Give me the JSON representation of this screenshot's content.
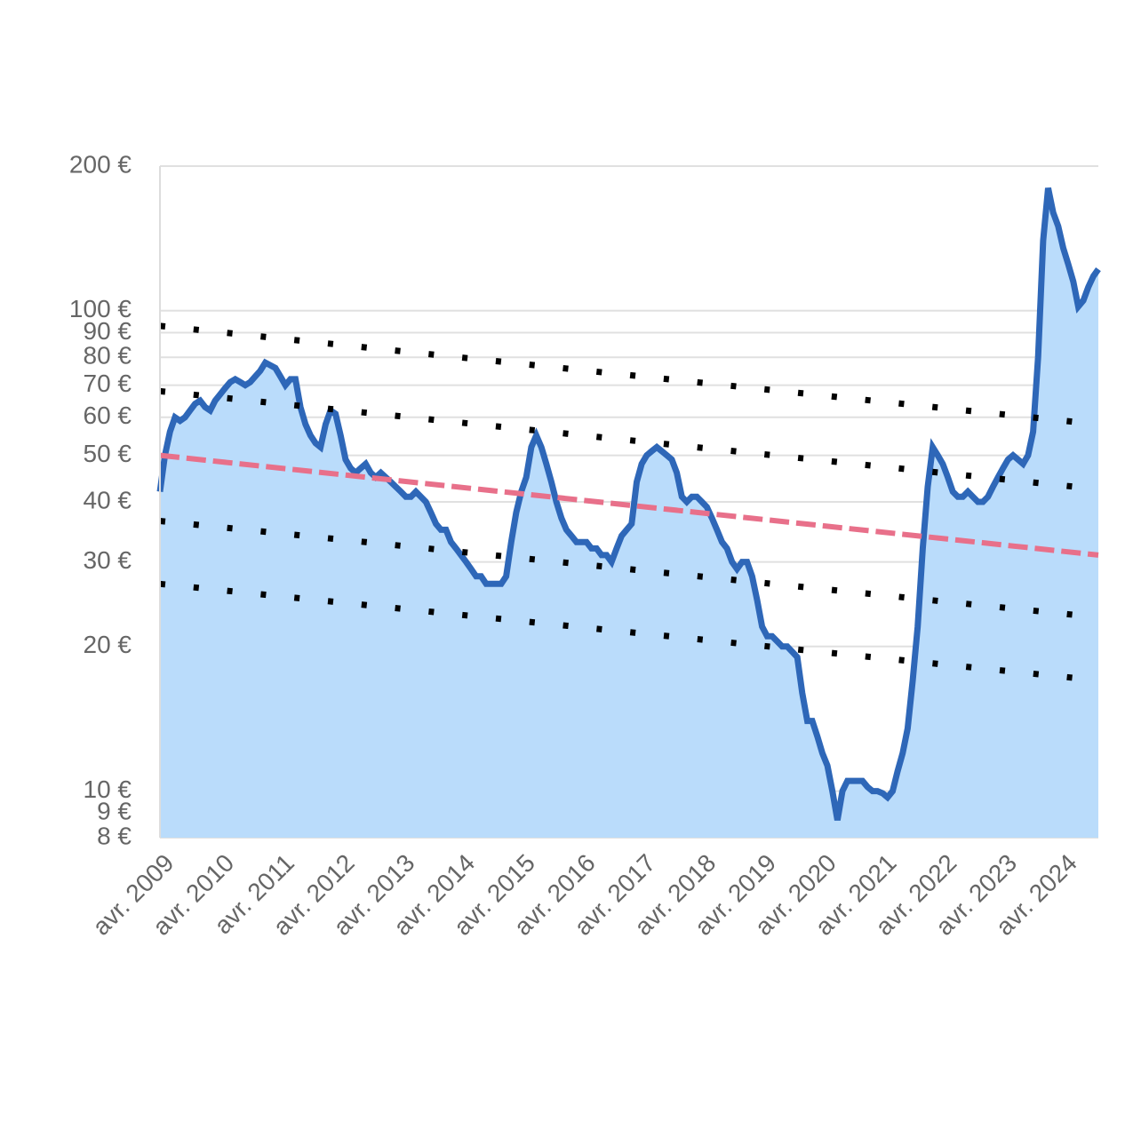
{
  "chart_data": {
    "type": "area-line",
    "log_scale": true,
    "grid": true,
    "ylim": [
      8,
      200
    ],
    "yticks": [
      {
        "value": 8,
        "label": "8 €"
      },
      {
        "value": 9,
        "label": "9 €"
      },
      {
        "value": 10,
        "label": "10 €"
      },
      {
        "value": 20,
        "label": "20 €"
      },
      {
        "value": 30,
        "label": "30 €"
      },
      {
        "value": 40,
        "label": "40 €"
      },
      {
        "value": 50,
        "label": "50 €"
      },
      {
        "value": 60,
        "label": "60 €"
      },
      {
        "value": 70,
        "label": "70 €"
      },
      {
        "value": 80,
        "label": "80 €"
      },
      {
        "value": 90,
        "label": "90 €"
      },
      {
        "value": 100,
        "label": "100 €"
      },
      {
        "value": 200,
        "label": "200 €"
      }
    ],
    "categories": [
      "avr. 2009",
      null,
      null,
      null,
      null,
      null,
      null,
      null,
      null,
      null,
      null,
      null,
      "avr. 2010",
      null,
      null,
      null,
      null,
      null,
      null,
      null,
      null,
      null,
      null,
      null,
      "avr. 2011",
      null,
      null,
      null,
      null,
      null,
      null,
      null,
      null,
      null,
      null,
      null,
      "avr. 2012",
      null,
      null,
      null,
      null,
      null,
      null,
      null,
      null,
      null,
      null,
      null,
      "avr. 2013",
      null,
      null,
      null,
      null,
      null,
      null,
      null,
      null,
      null,
      null,
      null,
      "avr. 2014",
      null,
      null,
      null,
      null,
      null,
      null,
      null,
      null,
      null,
      null,
      null,
      "avr. 2015",
      null,
      null,
      null,
      null,
      null,
      null,
      null,
      null,
      null,
      null,
      null,
      "avr. 2016",
      null,
      null,
      null,
      null,
      null,
      null,
      null,
      null,
      null,
      null,
      null,
      "avr. 2017",
      null,
      null,
      null,
      null,
      null,
      null,
      null,
      null,
      null,
      null,
      null,
      "avr. 2018",
      null,
      null,
      null,
      null,
      null,
      null,
      null,
      null,
      null,
      null,
      null,
      "avr. 2019",
      null,
      null,
      null,
      null,
      null,
      null,
      null,
      null,
      null,
      null,
      null,
      "avr. 2020",
      null,
      null,
      null,
      null,
      null,
      null,
      null,
      null,
      null,
      null,
      null,
      "avr. 2021",
      null,
      null,
      null,
      null,
      null,
      null,
      null,
      null,
      null,
      null,
      null,
      "avr. 2022",
      null,
      null,
      null,
      null,
      null,
      null,
      null,
      null,
      null,
      null,
      null,
      "avr. 2023",
      null,
      null,
      null,
      null,
      null,
      null,
      null,
      null,
      null,
      null,
      null,
      "avr. 2024",
      null,
      null,
      null,
      null,
      null,
      null,
      null
    ],
    "series": [
      {
        "color": "#2e67b8",
        "fill": "#badcfb",
        "values": [
          42,
          50,
          56,
          60,
          59,
          60,
          62,
          64,
          65,
          63,
          62,
          65,
          67,
          69,
          71,
          72,
          71,
          70,
          71,
          73,
          75,
          78,
          77,
          76,
          73,
          70,
          72,
          72,
          63,
          58,
          55,
          53,
          52,
          58,
          62,
          61,
          55,
          49,
          47,
          46,
          47,
          48,
          46,
          45,
          46,
          45,
          44,
          43,
          42,
          41,
          41,
          42,
          41,
          40,
          38,
          36,
          35,
          35,
          33,
          32,
          31,
          30,
          29,
          28,
          28,
          27,
          27,
          27,
          27,
          28,
          33,
          38,
          42,
          45,
          52,
          55,
          52,
          48,
          44,
          40,
          37,
          35,
          34,
          33,
          33,
          33,
          32,
          32,
          31,
          31,
          30,
          32,
          34,
          35,
          36,
          44,
          48,
          50,
          51,
          52,
          51,
          50,
          49,
          46,
          41,
          40,
          41,
          41,
          40,
          39,
          37,
          35,
          33,
          32,
          30,
          29,
          30,
          30,
          28,
          25,
          22,
          21,
          21,
          20.5,
          20,
          20,
          19.5,
          19,
          16,
          14,
          14,
          13,
          12,
          11.3,
          10,
          8.7,
          10,
          10.5,
          10.5,
          10.5,
          10.5,
          10.2,
          10,
          10,
          9.9,
          9.7,
          10,
          11,
          12,
          13.5,
          17,
          22,
          32,
          43,
          52,
          50,
          48,
          45,
          42,
          41,
          41,
          42,
          41,
          40,
          40,
          41,
          43,
          45,
          47,
          49,
          50,
          49,
          48,
          50,
          56,
          80,
          140,
          180,
          160,
          150,
          135,
          125,
          115,
          102,
          105,
          112,
          118,
          122
        ]
      }
    ],
    "trend_lines": [
      {
        "color": "#e8708a",
        "dash": "dashed",
        "values": [
          50,
          31
        ]
      },
      {
        "color": "#000000",
        "dash": "dotted",
        "values": [
          93,
          58
        ]
      },
      {
        "color": "#000000",
        "dash": "dotted",
        "values": [
          68,
          42.5
        ]
      },
      {
        "color": "#000000",
        "dash": "dotted",
        "values": [
          36.5,
          23
        ]
      },
      {
        "color": "#000000",
        "dash": "dotted",
        "values": [
          27,
          17
        ]
      }
    ]
  }
}
